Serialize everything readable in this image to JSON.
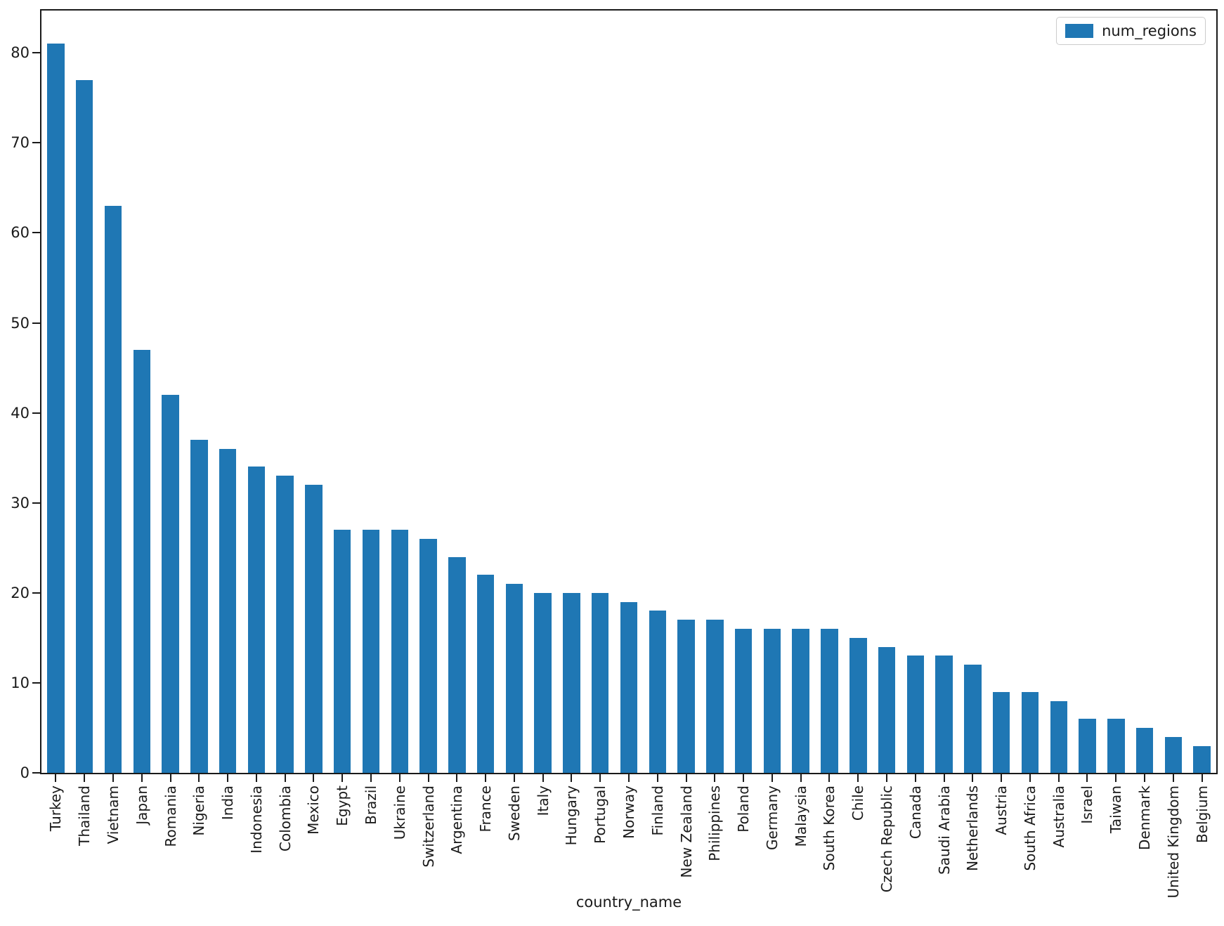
{
  "figure": {
    "xlabel": "country_name",
    "legend": {
      "label": "num_regions"
    },
    "colors": {
      "bar": "#1f77b4",
      "axis": "#1a1a1a",
      "text": "#1a1a1a",
      "legend_border": "#cccccc"
    }
  },
  "chart_data": {
    "type": "bar",
    "title": "",
    "xlabel": "country_name",
    "ylabel": "",
    "legend": [
      "num_regions"
    ],
    "legend_position": "upper right",
    "grid": false,
    "bar_color": "#1f77b4",
    "ylim": [
      0,
      84.7
    ],
    "yticks": [
      0,
      10,
      20,
      30,
      40,
      50,
      60,
      70,
      80
    ],
    "x_tick_rotation": 90,
    "categories": [
      "Turkey",
      "Thailand",
      "Vietnam",
      "Japan",
      "Romania",
      "Nigeria",
      "India",
      "Indonesia",
      "Colombia",
      "Mexico",
      "Egypt",
      "Brazil",
      "Ukraine",
      "Switzerland",
      "Argentina",
      "France",
      "Sweden",
      "Italy",
      "Hungary",
      "Portugal",
      "Norway",
      "Finland",
      "New Zealand",
      "Philippines",
      "Poland",
      "Germany",
      "Malaysia",
      "South Korea",
      "Chile",
      "Czech Republic",
      "Canada",
      "Saudi Arabia",
      "Netherlands",
      "Austria",
      "South Africa",
      "Australia",
      "Israel",
      "Taiwan",
      "Denmark",
      "United Kingdom",
      "Belgium"
    ],
    "series": [
      {
        "name": "num_regions",
        "values": [
          81,
          77,
          63,
          47,
          42,
          37,
          36,
          34,
          33,
          32,
          27,
          27,
          27,
          26,
          24,
          22,
          21,
          20,
          20,
          20,
          19,
          18,
          17,
          17,
          16,
          16,
          16,
          16,
          15,
          14,
          13,
          13,
          12,
          9,
          9,
          8,
          6,
          6,
          5,
          4,
          3
        ]
      }
    ]
  }
}
